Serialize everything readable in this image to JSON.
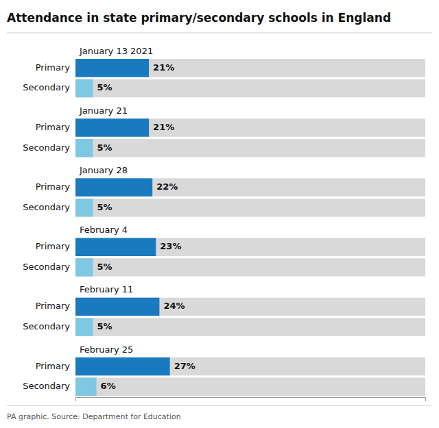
{
  "chart_data": {
    "type": "bar",
    "orientation": "horizontal",
    "title": "Attendance in state primary/secondary schools in England",
    "annotations": [
      "PA graphic. Source: Department for Education"
    ],
    "categories": [
      "January 13 2021",
      "January 21",
      "January 28",
      "February 4",
      "February 11",
      "February 25"
    ],
    "series": [
      {
        "name": "Primary",
        "color": "#1a7abf",
        "values": [
          21,
          21,
          22,
          23,
          24,
          27
        ],
        "value_labels": [
          "21%",
          "21%",
          "22%",
          "23%",
          "24%",
          "27%"
        ]
      },
      {
        "name": "Secondary",
        "color": "#7ec8e3",
        "values": [
          5,
          5,
          5,
          5,
          5,
          6
        ],
        "value_labels": [
          "5%",
          "5%",
          "5%",
          "5%",
          "5%",
          "6%"
        ]
      }
    ],
    "xlim": [
      0,
      100
    ],
    "data_labels": true,
    "tick_labels": false,
    "grid": false
  }
}
